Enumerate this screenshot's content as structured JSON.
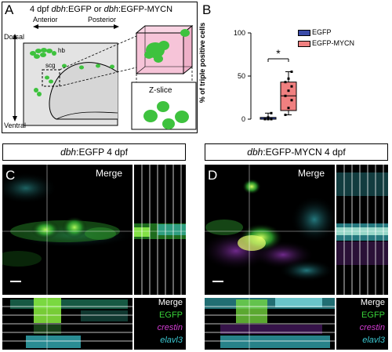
{
  "panelA": {
    "letter": "A",
    "title_pre": "4 dpf ",
    "title_g1": "dbh",
    "title_mid": ":EGFP or ",
    "title_g2": "dbh",
    "title_post": ":EGFP-MYCN",
    "anterior": "Anterior",
    "posterior": "Posterior",
    "dorsal": "Dorsal",
    "ventral": "Ventral",
    "hb": "hb",
    "scg": "scg",
    "zslice": "Z-slice"
  },
  "panelB": {
    "letter": "B",
    "significance": "*",
    "legend": [
      "EGFP",
      "EGFP-MYCN"
    ]
  },
  "chart_data": {
    "type": "box",
    "ylabel": "% of triple positive cells",
    "ylim": [
      0,
      100
    ],
    "yticks": [
      0,
      50,
      100
    ],
    "series": [
      {
        "name": "EGFP",
        "color": "#3a4ba8",
        "min": 0,
        "q1": 0,
        "median": 0,
        "q3": 2,
        "max": 7,
        "points": [
          0,
          0,
          0,
          0,
          2,
          7
        ]
      },
      {
        "name": "EGFP-MYCN",
        "color": "#f08080",
        "min": 5,
        "q1": 10,
        "median": 27,
        "q3": 43,
        "max": 55,
        "points": [
          5,
          13,
          22,
          27,
          33,
          38,
          43,
          47,
          55
        ]
      }
    ]
  },
  "panelC": {
    "letter": "C",
    "title_g": "dbh",
    "title_rest": ":EGFP 4 dpf",
    "merge": "Merge"
  },
  "panelD": {
    "letter": "D",
    "title_g": "dbh",
    "title_rest": ":EGFP-MYCN 4 dpf",
    "merge": "Merge"
  },
  "channels": [
    {
      "label": "Merge",
      "color": "#ffffff",
      "italic": false
    },
    {
      "label": "EGFP",
      "color": "#38d238",
      "italic": false
    },
    {
      "label": "crestin",
      "color": "#d23cd2",
      "italic": true
    },
    {
      "label": "elavl3",
      "color": "#3cc8d2",
      "italic": true
    }
  ]
}
